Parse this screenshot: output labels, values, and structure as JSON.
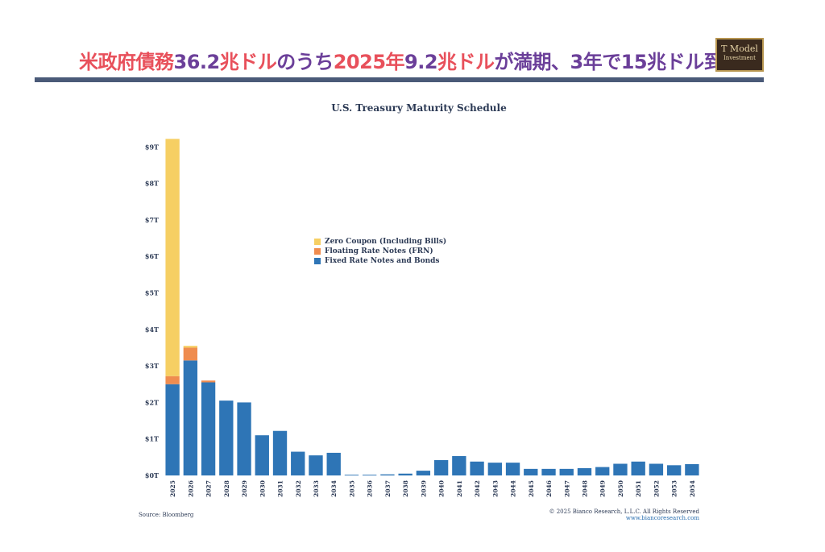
{
  "headline": {
    "parts": [
      {
        "text": "米政府債務",
        "color": "red"
      },
      {
        "text": "36.2",
        "color": "purple"
      },
      {
        "text": "兆ドル",
        "color": "red"
      },
      {
        "text": "のうち",
        "color": "purple"
      },
      {
        "text": "2025年",
        "color": "red"
      },
      {
        "text": "9.2",
        "color": "purple"
      },
      {
        "text": "兆ドル",
        "color": "red"
      },
      {
        "text": "が満期、",
        "color": "purple"
      },
      {
        "text": "3",
        "color": "purple"
      },
      {
        "text": "年で",
        "color": "purple"
      },
      {
        "text": "15",
        "color": "purple"
      },
      {
        "text": "兆ドル到",
        "color": "purple"
      }
    ]
  },
  "logo": {
    "line1": "T Model",
    "line2": "Investment"
  },
  "footer": {
    "source": "Source: Bloomberg",
    "copyright": "© 2025 Bianco Research, L.L.C. All Rights Reserved",
    "url": "www.biancoresearch.com"
  },
  "colors": {
    "zero": "#f6cf63",
    "frn": "#ef8c4f",
    "fixed": "#2e75b6",
    "rule": "#4a5a78"
  },
  "chart_data": {
    "type": "bar",
    "stacked": true,
    "title": "U.S. Treasury Maturity Schedule",
    "xlabel": "",
    "ylabel": "",
    "ylim": [
      0,
      9.2
    ],
    "yticks": [
      "$0T",
      "$1T",
      "$2T",
      "$3T",
      "$4T",
      "$5T",
      "$6T",
      "$7T",
      "$8T",
      "$9T"
    ],
    "legend_position": "center",
    "categories": [
      "2025",
      "2026",
      "2027",
      "2028",
      "2029",
      "2030",
      "2031",
      "2032",
      "2033",
      "2034",
      "2035",
      "2036",
      "2037",
      "2038",
      "2039",
      "2040",
      "2041",
      "2042",
      "2043",
      "2044",
      "2045",
      "2046",
      "2047",
      "2048",
      "2049",
      "2050",
      "2051",
      "2052",
      "2053",
      "2054"
    ],
    "series": [
      {
        "name": "Fixed Rate Notes and Bonds",
        "key": "fixed",
        "values": [
          2.5,
          3.15,
          2.55,
          2.05,
          2.0,
          1.1,
          1.22,
          0.65,
          0.55,
          0.62,
          0.02,
          0.02,
          0.03,
          0.05,
          0.13,
          0.42,
          0.53,
          0.38,
          0.35,
          0.35,
          0.18,
          0.18,
          0.18,
          0.2,
          0.23,
          0.32,
          0.38,
          0.32,
          0.28,
          0.31
        ]
      },
      {
        "name": "Floating Rate Notes (FRN)",
        "key": "frn",
        "values": [
          0.22,
          0.35,
          0.05,
          0,
          0,
          0,
          0,
          0,
          0,
          0,
          0,
          0,
          0,
          0,
          0,
          0,
          0,
          0,
          0,
          0,
          0,
          0,
          0,
          0,
          0,
          0,
          0,
          0,
          0,
          0
        ]
      },
      {
        "name": "Zero Coupon (Including Bills)",
        "key": "zero",
        "values": [
          6.5,
          0.05,
          0,
          0,
          0,
          0,
          0,
          0,
          0,
          0,
          0,
          0,
          0,
          0,
          0,
          0,
          0,
          0,
          0,
          0,
          0,
          0,
          0,
          0,
          0,
          0,
          0,
          0,
          0,
          0
        ]
      }
    ]
  }
}
